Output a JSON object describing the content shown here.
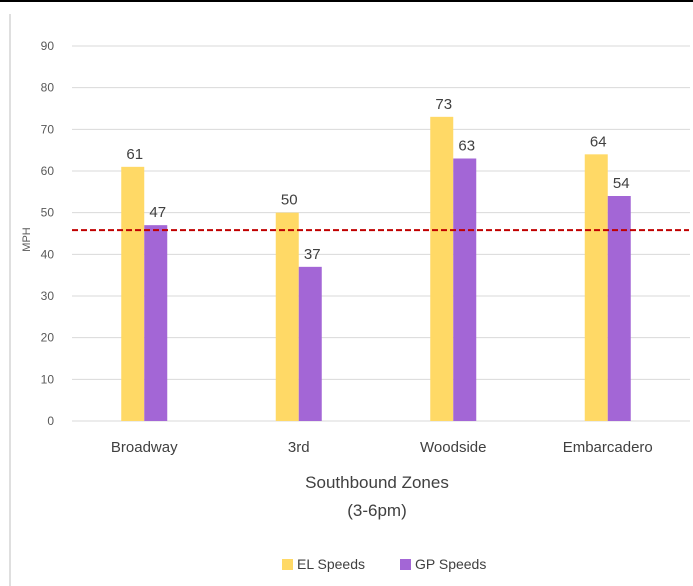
{
  "chart_data": {
    "type": "bar",
    "categories": [
      "Broadway",
      "3rd",
      "Woodside",
      "Embarcadero"
    ],
    "series": [
      {
        "name": "EL Speeds",
        "color": "#FFD966",
        "values": [
          61,
          50,
          73,
          64
        ],
        "labels": [
          "61",
          "50",
          "73",
          "64"
        ]
      },
      {
        "name": "GP Speeds",
        "color": "#A366D6",
        "values": [
          47,
          37,
          63,
          54
        ],
        "labels": [
          "47",
          "37",
          "63",
          "54"
        ]
      }
    ],
    "xlabel_line1": "Southbound Zones",
    "xlabel_line2": "(3-6pm)",
    "ylabel": "MPH",
    "ylim": [
      0,
      90
    ],
    "yticks": [
      "0",
      "10",
      "20",
      "30",
      "40",
      "50",
      "60",
      "70",
      "80",
      "90"
    ],
    "reference_line": {
      "value": 45.8,
      "color": "#C00000",
      "style": "dashed"
    },
    "grid": true,
    "gridline_color": "#D9D9D9",
    "legend_position": "bottom"
  }
}
